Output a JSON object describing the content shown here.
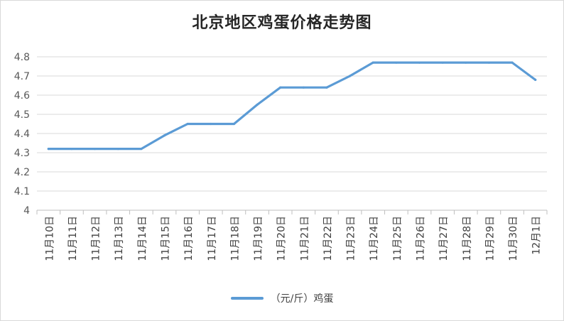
{
  "chart_data": {
    "type": "line",
    "title": "北京地区鸡蛋价格走势图",
    "categories": [
      "11月10日",
      "11月11日",
      "11月12日",
      "11月13日",
      "11月14日",
      "11月15日",
      "11月16日",
      "11月17日",
      "11月18日",
      "11月19日",
      "11月20日",
      "11月21日",
      "11月22日",
      "11月23日",
      "11月24日",
      "11月25日",
      "11月26日",
      "11月27日",
      "11月28日",
      "11月29日",
      "11月30日",
      "12月1日"
    ],
    "series": [
      {
        "name": "（元/斤）鸡蛋",
        "color": "#5b9bd5",
        "values": [
          4.32,
          4.32,
          4.32,
          4.32,
          4.32,
          4.39,
          4.45,
          4.45,
          4.45,
          4.55,
          4.64,
          4.64,
          4.64,
          4.7,
          4.77,
          4.77,
          4.77,
          4.77,
          4.77,
          4.77,
          4.77,
          4.68
        ]
      }
    ],
    "ylim": [
      4,
      4.8
    ],
    "yticks": [
      "4",
      "4.1",
      "4.2",
      "4.3",
      "4.4",
      "4.5",
      "4.6",
      "4.7",
      "4.8"
    ],
    "grid": true,
    "legend_position": "bottom"
  }
}
